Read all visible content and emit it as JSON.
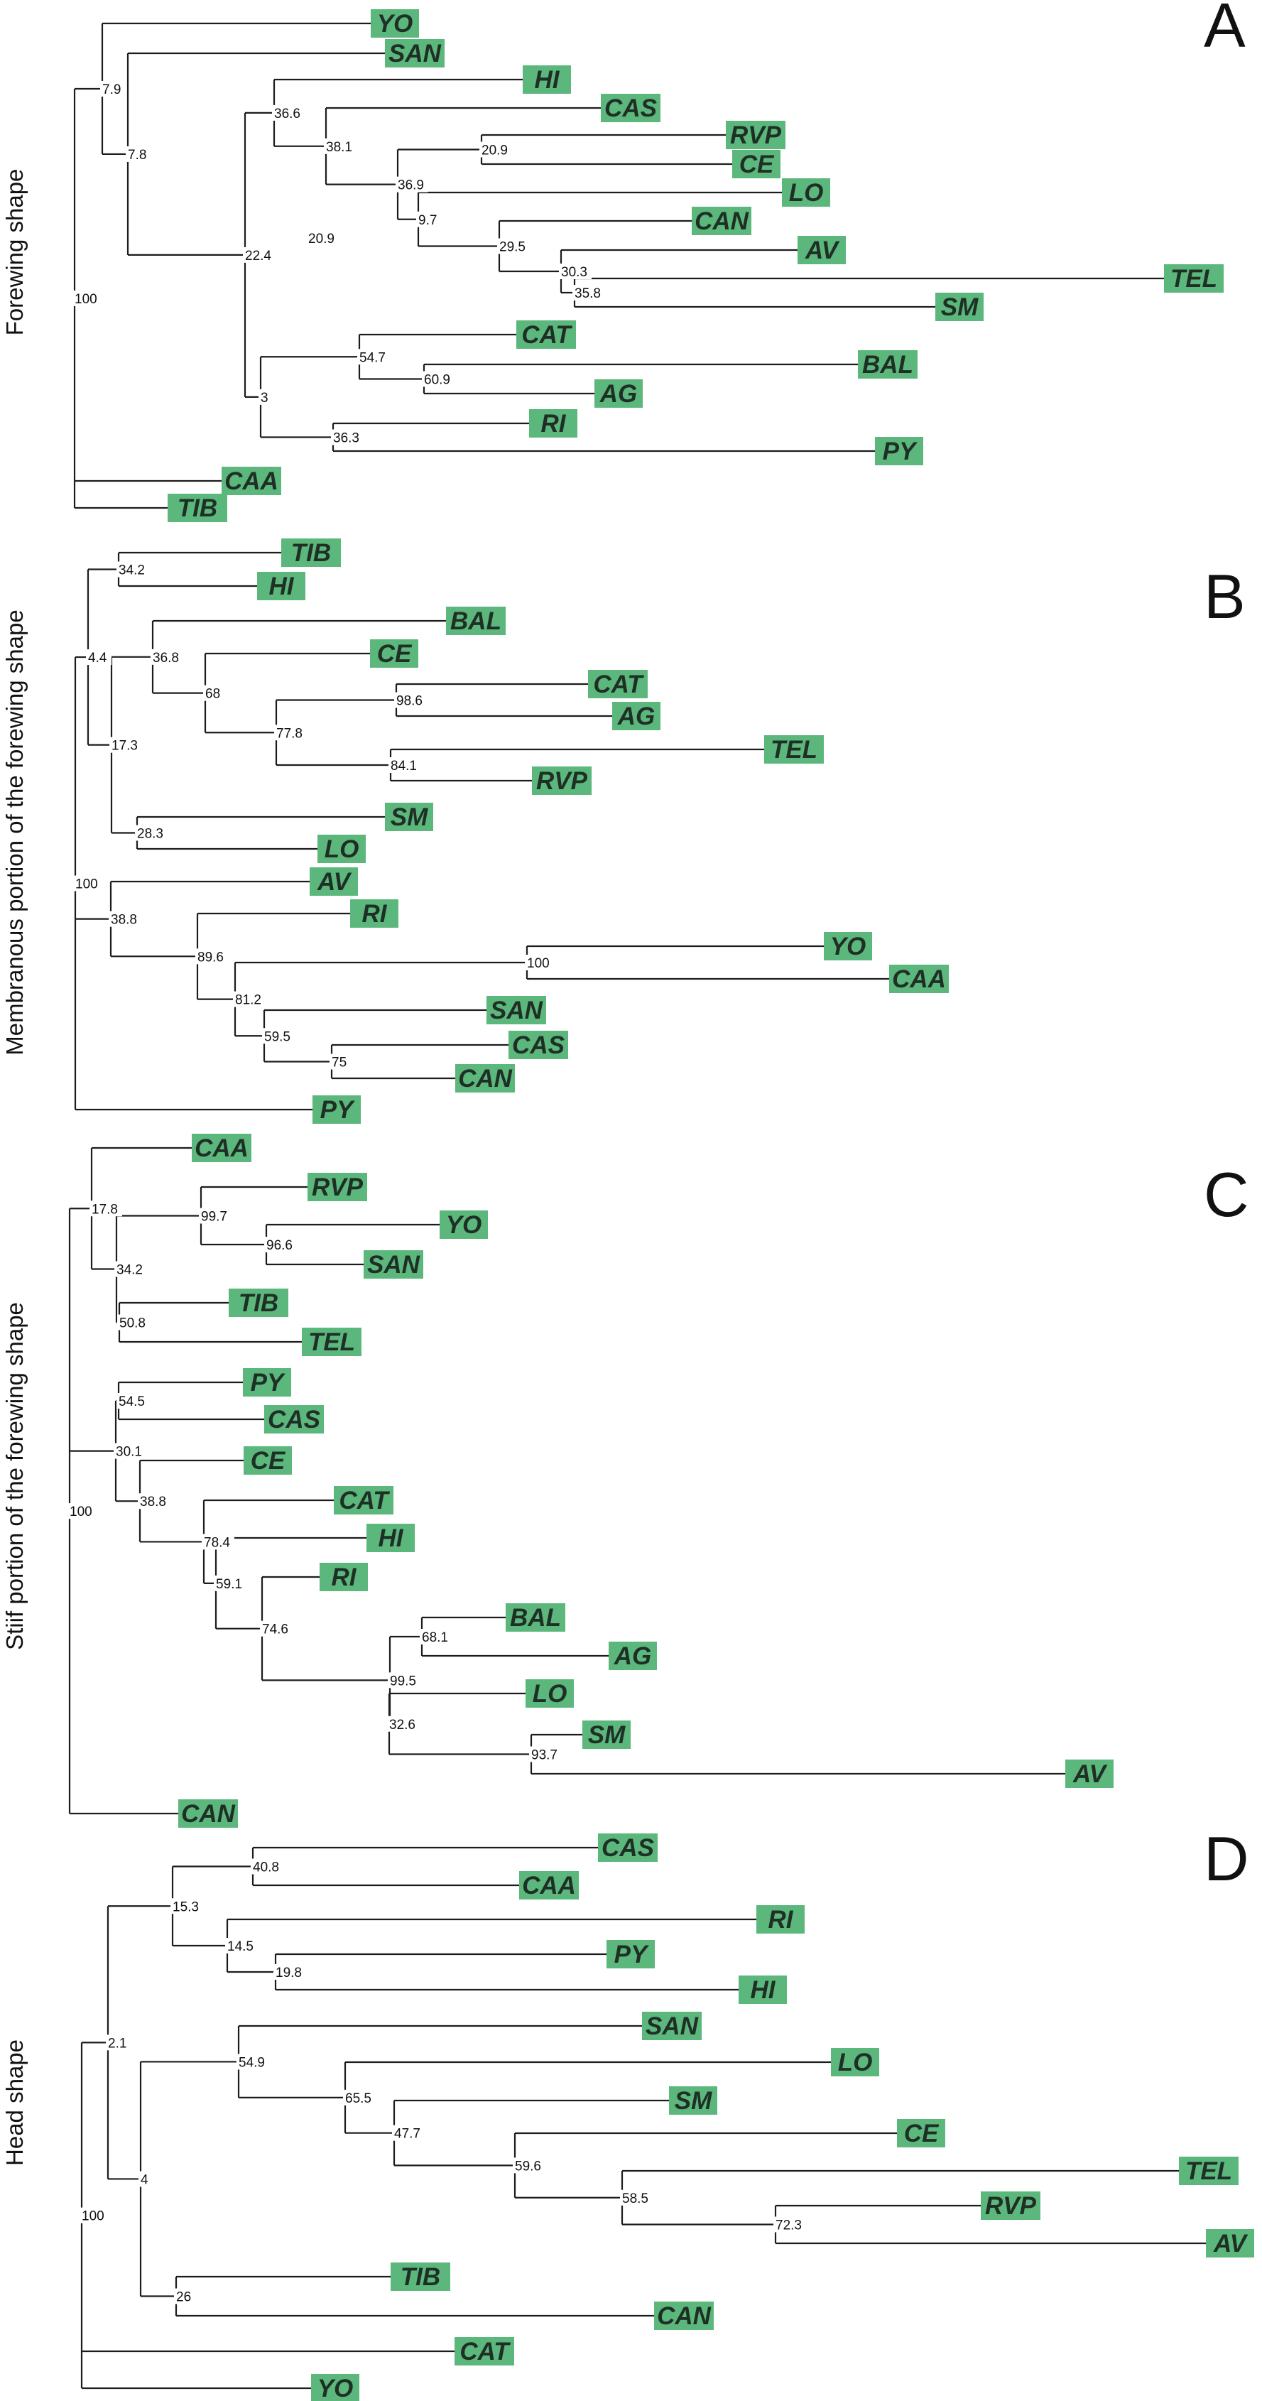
{
  "panels": [
    {
      "letter": "A",
      "title": "Forewing shape",
      "tree": {
        "sup": "100",
        "children": [
          {
            "sup": "7.9",
            "children": [
              {
                "tip": "YO"
              },
              {
                "sup": "7.8",
                "children": [
                  {
                    "tip": "SAN"
                  },
                  {
                    "sup": "22.4",
                    "children": [
                      {
                        "sup": "36.6",
                        "children": [
                          {
                            "tip": "HI"
                          },
                          {
                            "sup": "38.1",
                            "children": [
                              {
                                "tip": "CAS"
                              },
                              {
                                "sup": "36.9",
                                "children": [
                                  {
                                    "sup": "20.9",
                                    "children": [
                                      {
                                        "tip": "RVP"
                                      },
                                      {
                                        "tip": "CE"
                                      }
                                    ]
                                  },
                                  {
                                    "sup": "9.7",
                                    "children": [
                                      {
                                        "tip": "LO"
                                      },
                                      {
                                        "sup": "29.5",
                                        "children": [
                                          {
                                            "tip": "CAN"
                                          },
                                          {
                                            "sup": "30.3",
                                            "children": [
                                              {
                                                "tip": "AV"
                                              },
                                              {
                                                "sup": "35.8",
                                                "children": [
                                                  {
                                                    "tip": "TEL"
                                                  },
                                                  {
                                                    "tip": "SM"
                                                  }
                                                ]
                                              }
                                            ]
                                          }
                                        ]
                                      }
                                    ]
                                  }
                                ]
                              }
                            ]
                          }
                        ]
                      },
                      {
                        "sup": "3",
                        "children": [
                          {
                            "sup": "54.7",
                            "children": [
                              {
                                "tip": "CAT"
                              },
                              {
                                "sup": "60.9",
                                "children": [
                                  {
                                    "tip": "BAL"
                                  },
                                  {
                                    "tip": "AG"
                                  }
                                ]
                              }
                            ]
                          },
                          {
                            "sup": "36.3",
                            "children": [
                              {
                                "tip": "RI"
                              },
                              {
                                "tip": "PY"
                              }
                            ]
                          }
                        ]
                      }
                    ]
                  }
                ]
              }
            ]
          },
          {
            "tip": "CAA"
          },
          {
            "tip": "TIB"
          }
        ]
      },
      "extra_labels": [
        "20.9"
      ]
    },
    {
      "letter": "B",
      "title": "Membranous portion of the forewing shape",
      "tree": {
        "sup": "100",
        "children": [
          {
            "sup": "4.4",
            "children": [
              {
                "sup": "34.2",
                "children": [
                  {
                    "tip": "TIB"
                  },
                  {
                    "tip": "HI"
                  }
                ]
              },
              {
                "sup": "17.3",
                "children": [
                  {
                    "sup": "36.8",
                    "children": [
                      {
                        "tip": "BAL"
                      },
                      {
                        "sup": "68",
                        "children": [
                          {
                            "tip": "CE"
                          },
                          {
                            "sup": "77.8",
                            "children": [
                              {
                                "sup": "98.6",
                                "children": [
                                  {
                                    "tip": "CAT"
                                  },
                                  {
                                    "tip": "AG"
                                  }
                                ]
                              },
                              {
                                "sup": "84.1",
                                "children": [
                                  {
                                    "tip": "TEL"
                                  },
                                  {
                                    "tip": "RVP"
                                  }
                                ]
                              }
                            ]
                          }
                        ]
                      }
                    ]
                  },
                  {
                    "sup": "28.3",
                    "children": [
                      {
                        "tip": "SM"
                      },
                      {
                        "tip": "LO"
                      }
                    ]
                  }
                ]
              }
            ]
          },
          {
            "sup": "38.8",
            "children": [
              {
                "tip": "AV"
              },
              {
                "sup": "89.6",
                "children": [
                  {
                    "tip": "RI"
                  },
                  {
                    "sup": "81.2",
                    "children": [
                      {
                        "sup": "100",
                        "children": [
                          {
                            "tip": "YO"
                          },
                          {
                            "tip": "CAA"
                          }
                        ]
                      },
                      {
                        "sup": "59.5",
                        "children": [
                          {
                            "tip": "SAN"
                          },
                          {
                            "sup": "75",
                            "children": [
                              {
                                "tip": "CAS"
                              },
                              {
                                "tip": "CAN"
                              }
                            ]
                          }
                        ]
                      }
                    ]
                  }
                ]
              }
            ]
          },
          {
            "tip": "PY"
          }
        ]
      },
      "extra_labels": []
    },
    {
      "letter": "C",
      "title": "Stiif portion of the forewing shape",
      "tree": {
        "sup": "100",
        "children": [
          {
            "sup": "17.8",
            "children": [
              {
                "tip": "CAA"
              },
              {
                "sup": "34.2",
                "children": [
                  {
                    "sup": "99.7",
                    "children": [
                      {
                        "tip": "RVP"
                      },
                      {
                        "sup": "96.6",
                        "children": [
                          {
                            "tip": "YO"
                          },
                          {
                            "tip": "SAN"
                          }
                        ]
                      }
                    ]
                  },
                  {
                    "sup": "50.8",
                    "children": [
                      {
                        "tip": "TIB"
                      },
                      {
                        "tip": "TEL"
                      }
                    ]
                  }
                ]
              }
            ]
          },
          {
            "sup": "30.1",
            "children": [
              {
                "sup": "54.5",
                "children": [
                  {
                    "tip": "PY"
                  },
                  {
                    "tip": "CAS"
                  }
                ]
              },
              {
                "sup": "38.8",
                "children": [
                  {
                    "tip": "CE"
                  },
                  {
                    "sup": "78.4",
                    "children": [
                      {
                        "tip": "CAT"
                      },
                      {
                        "sup": "59.1",
                        "children": [
                          {
                            "tip": "HI"
                          },
                          {
                            "sup": "74.6",
                            "children": [
                              {
                                "tip": "RI"
                              },
                              {
                                "sup": "99.5",
                                "children": [
                                  {
                                    "sup": "68.1",
                                    "children": [
                                      {
                                        "tip": "BAL"
                                      },
                                      {
                                        "tip": "AG"
                                      }
                                    ]
                                  },
                                  {
                                    "sup": "32.6",
                                    "children": [
                                      {
                                        "tip": "LO"
                                      },
                                      {
                                        "sup": "93.7",
                                        "children": [
                                          {
                                            "tip": "SM"
                                          },
                                          {
                                            "tip": "AV"
                                          }
                                        ]
                                      }
                                    ]
                                  }
                                ]
                              }
                            ]
                          }
                        ]
                      }
                    ]
                  }
                ]
              }
            ]
          },
          {
            "tip": "CAN"
          }
        ]
      },
      "extra_labels": []
    },
    {
      "letter": "D",
      "title": "Head shape",
      "tree": {
        "sup": "100",
        "children": [
          {
            "sup": "2.1",
            "children": [
              {
                "sup": "15.3",
                "children": [
                  {
                    "sup": "40.8",
                    "children": [
                      {
                        "tip": "CAS"
                      },
                      {
                        "tip": "CAA"
                      }
                    ]
                  },
                  {
                    "sup": "14.5",
                    "children": [
                      {
                        "tip": "RI"
                      },
                      {
                        "sup": "19.8",
                        "children": [
                          {
                            "tip": "PY"
                          },
                          {
                            "tip": "HI"
                          }
                        ]
                      }
                    ]
                  }
                ]
              },
              {
                "sup": "4",
                "children": [
                  {
                    "sup": "54.9",
                    "children": [
                      {
                        "tip": "SAN"
                      },
                      {
                        "sup": "65.5",
                        "children": [
                          {
                            "tip": "LO"
                          },
                          {
                            "sup": "47.7",
                            "children": [
                              {
                                "tip": "SM"
                              },
                              {
                                "sup": "59.6",
                                "children": [
                                  {
                                    "tip": "CE"
                                  },
                                  {
                                    "sup": "58.5",
                                    "children": [
                                      {
                                        "tip": "TEL"
                                      },
                                      {
                                        "sup": "72.3",
                                        "children": [
                                          {
                                            "tip": "RVP"
                                          },
                                          {
                                            "tip": "AV"
                                          }
                                        ]
                                      }
                                    ]
                                  }
                                ]
                              }
                            ]
                          }
                        ]
                      }
                    ]
                  },
                  {
                    "sup": "26",
                    "children": [
                      {
                        "tip": "TIB"
                      },
                      {
                        "tip": "CAN"
                      }
                    ]
                  }
                ]
              }
            ]
          },
          {
            "tip": "CAT"
          },
          {
            "tip": "YO"
          }
        ]
      },
      "extra_labels": []
    }
  ],
  "colors": {
    "tip_fill": "#5bb77c",
    "line": "#1c1c1c"
  }
}
